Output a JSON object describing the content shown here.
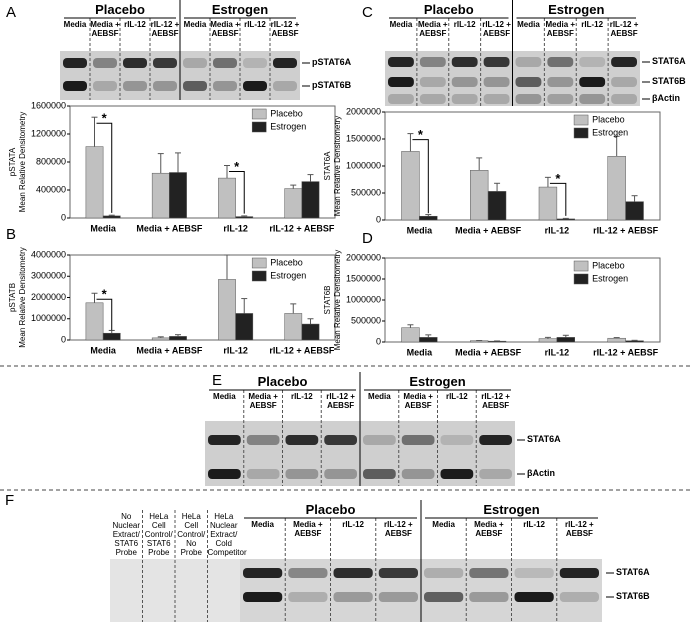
{
  "chart_data": [
    {
      "panel": "A",
      "type": "bar",
      "ylabel": [
        "pSTATA",
        "Mean Relative Densitometry"
      ],
      "categories": [
        "Media",
        "Media + AEBSF",
        "rIL-12",
        "rIL-12 + AEBSF"
      ],
      "series": [
        {
          "name": "Placebo",
          "color": "#c0c0c0",
          "values": [
            1020000,
            640000,
            570000,
            420000
          ],
          "errors": [
            420000,
            280000,
            180000,
            50000
          ]
        },
        {
          "name": "Estrogen",
          "color": "#222222",
          "values": [
            30000,
            650000,
            20000,
            520000
          ],
          "errors": [
            10000,
            280000,
            10000,
            100000
          ]
        }
      ],
      "ylim": [
        0,
        1600000
      ],
      "yticks": [
        0,
        400000,
        800000,
        1200000,
        1600000
      ],
      "annotations": [
        {
          "text": "*",
          "category": "Media"
        },
        {
          "text": "*",
          "category": "rIL-12"
        }
      ],
      "legend": "top-right"
    },
    {
      "panel": "B",
      "type": "bar",
      "ylabel": [
        "pSTATB",
        "Mean Relative Densitometry"
      ],
      "categories": [
        "Media",
        "Media + AEBSF",
        "rIL-12",
        "rIL-12 + AEBSF"
      ],
      "series": [
        {
          "name": "Placebo",
          "color": "#c0c0c0",
          "values": [
            1750000,
            100000,
            2850000,
            1250000
          ],
          "errors": [
            450000,
            50000,
            1150000,
            450000
          ]
        },
        {
          "name": "Estrogen",
          "color": "#222222",
          "values": [
            320000,
            170000,
            1250000,
            750000
          ],
          "errors": [
            130000,
            80000,
            700000,
            250000
          ]
        }
      ],
      "ylim": [
        0,
        4000000
      ],
      "yticks": [
        0,
        1000000,
        2000000,
        3000000,
        4000000
      ],
      "annotations": [
        {
          "text": "*",
          "category": "Media"
        }
      ],
      "legend": "top-right"
    },
    {
      "panel": "C",
      "type": "bar",
      "ylabel": [
        "STAT6A",
        "Mean Relative Densitometry"
      ],
      "categories": [
        "Media",
        "Media + AEBSF",
        "rIL-12",
        "rIL-12 + AEBSF"
      ],
      "series": [
        {
          "name": "Placebo",
          "color": "#c0c0c0",
          "values": [
            1270000,
            920000,
            610000,
            1180000
          ],
          "errors": [
            330000,
            230000,
            180000,
            370000
          ]
        },
        {
          "name": "Estrogen",
          "color": "#222222",
          "values": [
            70000,
            530000,
            20000,
            340000
          ],
          "errors": [
            30000,
            150000,
            10000,
            110000
          ]
        }
      ],
      "ylim": [
        0,
        2000000
      ],
      "yticks": [
        0,
        500000,
        1000000,
        1500000,
        2000000
      ],
      "annotations": [
        {
          "text": "*",
          "category": "Media"
        },
        {
          "text": "*",
          "category": "rIL-12"
        }
      ],
      "legend": "top-right"
    },
    {
      "panel": "D",
      "type": "bar",
      "ylabel": [
        "STAT6B",
        "Mean Relative Densitometry"
      ],
      "categories": [
        "Media",
        "Media + AEBSF",
        "rIL-12",
        "rIL-12 + AEBSF"
      ],
      "series": [
        {
          "name": "Placebo",
          "color": "#c0c0c0",
          "values": [
            340000,
            30000,
            80000,
            90000
          ],
          "errors": [
            70000,
            5000,
            30000,
            15000
          ]
        },
        {
          "name": "Estrogen",
          "color": "#222222",
          "values": [
            110000,
            20000,
            110000,
            30000
          ],
          "errors": [
            60000,
            5000,
            50000,
            10000
          ]
        }
      ],
      "ylim": [
        0,
        2000000
      ],
      "yticks": [
        0,
        500000,
        1000000,
        1500000,
        2000000
      ],
      "annotations": [],
      "legend": "top-right"
    }
  ],
  "blots": [
    {
      "groups": [
        "Placebo",
        "Estrogen"
      ],
      "lanes": [
        "Media",
        "Media + AEBSF",
        "rIL-12",
        "rIL-12 + AEBSF",
        "Media",
        "Media + AEBSF",
        "rIL-12",
        "rIL-12 + AEBSF"
      ],
      "markers": [
        "pSTAT6A",
        "pSTAT6B"
      ]
    },
    {
      "groups": [
        "Placebo",
        "Estrogen"
      ],
      "lanes": [
        "Media",
        "Media + AEBSF",
        "rIL-12",
        "rIL-12 + AEBSF",
        "Media",
        "Media + AEBSF",
        "rIL-12",
        "rIL-12 + AEBSF"
      ],
      "markers": [
        "STAT6A",
        "STAT6B",
        "βActin"
      ]
    },
    {
      "panel": "E",
      "groups": [
        "Placebo",
        "Estrogen"
      ],
      "lanes": [
        "Media",
        "Media + AEBSF",
        "rIL-12",
        "rIL-12 + AEBSF",
        "Media",
        "Media + AEBSF",
        "rIL-12",
        "rIL-12 + AEBSF"
      ],
      "markers": [
        "STAT6A",
        "βActin"
      ]
    },
    {
      "panel": "F",
      "controls": [
        "No Nuclear Extract/ STAT6 Probe",
        "HeLa Cell Control/ STAT6 Probe",
        "HeLa Cell Control/ No Probe",
        "HeLa Nuclear Extract/ Cold Competitor"
      ],
      "groups": [
        "Placebo",
        "Estrogen"
      ],
      "lanes": [
        "Media",
        "Media + AEBSF",
        "rIL-12",
        "rIL-12 + AEBSF",
        "Media",
        "Media + AEBSF",
        "rIL-12",
        "rIL-12 + AEBSF"
      ],
      "markers": [
        "STAT6A",
        "STAT6B"
      ]
    }
  ]
}
